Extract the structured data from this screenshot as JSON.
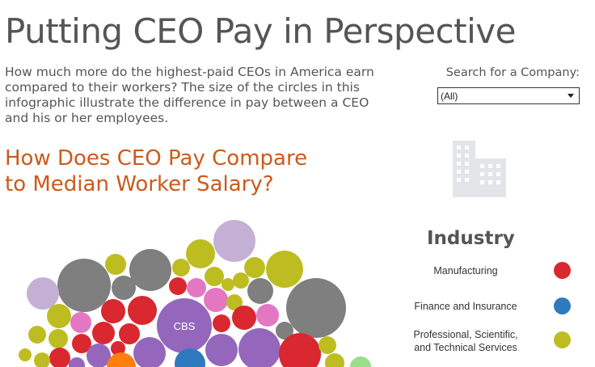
{
  "header": {
    "title": "Putting CEO Pay in Perspective",
    "intro": "How much more do the highest-paid CEOs in America earn compared to their workers? The size of the circles in this infographic illustrate the difference in pay between a CEO and his or her employees.",
    "subhead_line1": "How Does CEO Pay Compare",
    "subhead_line2": "to Median Worker Salary?"
  },
  "search": {
    "label": "Search for a Company:",
    "selected": "(All)"
  },
  "legend": {
    "title": "Industry",
    "items": [
      {
        "label": "Manufacturing",
        "color": "#d9282f"
      },
      {
        "label": "Finance and Insurance",
        "color": "#2f7abf"
      },
      {
        "label": "Professional, Scientific, and Technical Services",
        "color": "#bdbd22"
      }
    ]
  },
  "bubbles": {
    "label": "CBS",
    "colors": {
      "manufacturing": "#d9282f",
      "finance": "#2f7abf",
      "professional": "#bdbd22",
      "gray": "#7f7f7f",
      "purple": "#9467bd",
      "lavender": "#c5b0d5",
      "pink": "#e377c2",
      "orange": "#ff7f0e",
      "green": "#98df8a"
    }
  }
}
